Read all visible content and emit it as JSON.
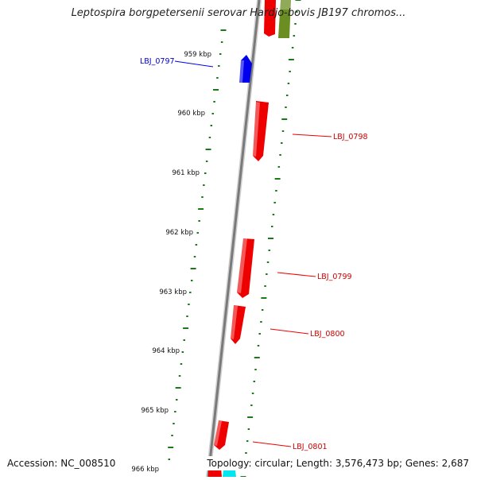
{
  "title": "Leptospira borgpetersenii serovar Hardjo-bovis JB197 chromos...",
  "accession_label": "Accession: NC_008510",
  "topology_label": "Topology: circular; Length: 3,576,473 bp; Genes: 2,687",
  "ticks": [
    "959 kbp",
    "960 kbp",
    "961 kbp",
    "962 kbp",
    "963 kbp",
    "964 kbp",
    "965 kbp",
    "966 kbp"
  ],
  "genes": [
    {
      "label": "LBJ_0797",
      "strand": "minus",
      "color": "#0000ee"
    },
    {
      "label": "LBJ_0798",
      "strand": "plus",
      "color": "#ee0000"
    },
    {
      "label": "LBJ_0799",
      "strand": "plus",
      "color": "#ee0000"
    },
    {
      "label": "LBJ_0800",
      "strand": "plus",
      "color": "#ee0000"
    },
    {
      "label": "LBJ_0801",
      "strand": "plus",
      "color": "#ee0000"
    }
  ],
  "colors": {
    "backbone": "#888888",
    "tick": "#1a7a1a",
    "plus_gene": "#ee0000",
    "minus_gene": "#0000ee",
    "olive_feature": "#6b8e23",
    "cyan_feature": "#00e5ee"
  }
}
